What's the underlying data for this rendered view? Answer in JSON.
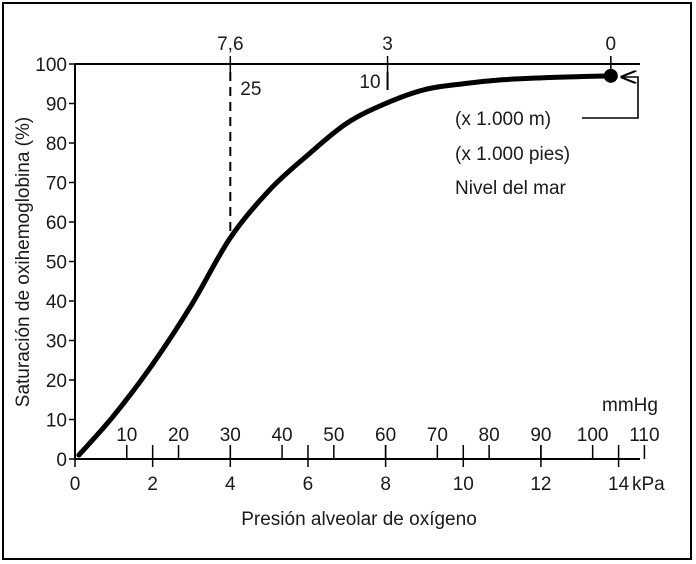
{
  "chart_data": {
    "type": "line",
    "title": "",
    "xlabel": "Presión alveolar de oxígeno",
    "ylabel": "Saturación de oxihemoglobina (%)",
    "x_unit_kpa": "kPa",
    "x_unit_mmhg": "mmHg",
    "xlim_kpa": [
      0,
      14.5
    ],
    "ylim": [
      0,
      100
    ],
    "y_ticks": [
      0,
      10,
      20,
      30,
      40,
      50,
      60,
      70,
      80,
      90,
      100
    ],
    "x_ticks_kpa": [
      0,
      2,
      4,
      6,
      8,
      10,
      12,
      14
    ],
    "x_ticks_mmhg": [
      10,
      20,
      30,
      40,
      50,
      60,
      70,
      80,
      90,
      100,
      110
    ],
    "altitude_axis": {
      "labels": [
        "7,6",
        "3",
        "0"
      ],
      "positions_kpa": [
        4.0,
        8.05,
        13.8
      ]
    },
    "series": [
      {
        "x": [
          0.1,
          1.0,
          2.0,
          3.0,
          4.0,
          5.0,
          6.0,
          7.0,
          8.0,
          9.0,
          10.0,
          11.0,
          12.0,
          13.0,
          13.8
        ],
        "y": [
          1,
          11,
          24,
          39,
          56,
          68,
          77,
          85,
          90,
          93.5,
          95,
          96,
          96.5,
          96.8,
          97
        ]
      }
    ],
    "markers": [
      {
        "label": "25",
        "x_kpa": 4.0,
        "y": 57
      },
      {
        "label": "10",
        "x_kpa": 8.05,
        "y": 90
      }
    ],
    "sea_level_point": {
      "x_kpa": 13.8,
      "y": 97
    },
    "annotations": [
      "(x 1.000 m)",
      "(x 1.000 pies)",
      "Nivel del mar"
    ],
    "grid": false
  }
}
